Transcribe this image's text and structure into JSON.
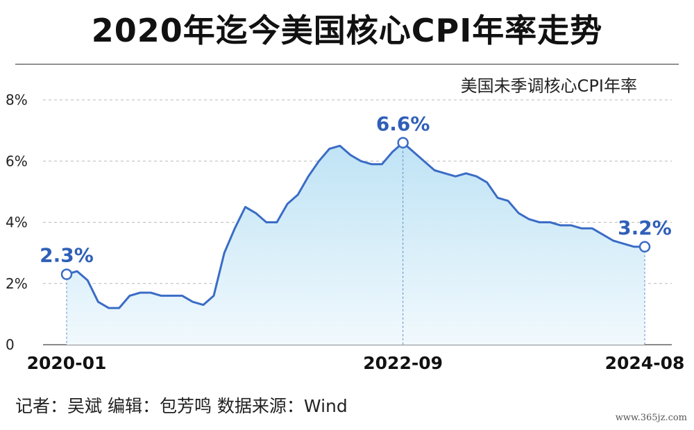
{
  "header": {
    "title": "2020年迄今美国核心CPI年率走势"
  },
  "chart_data": {
    "type": "area",
    "legend": "美国未季调核心CPI年率",
    "ylim": [
      0,
      8
    ],
    "yticks": [
      "0",
      "2%",
      "4%",
      "6%",
      "8%"
    ],
    "ytick_values": [
      0,
      2,
      4,
      6,
      8
    ],
    "grid": true,
    "xtick_labels": [
      "2020-01",
      "2022-09",
      "2024-08"
    ],
    "xtick_index": [
      0,
      32,
      55
    ],
    "values": [
      2.3,
      2.4,
      2.1,
      1.4,
      1.2,
      1.2,
      1.6,
      1.7,
      1.7,
      1.6,
      1.6,
      1.6,
      1.4,
      1.3,
      1.6,
      3.0,
      3.8,
      4.5,
      4.3,
      4.0,
      4.0,
      4.6,
      4.9,
      5.5,
      6.0,
      6.4,
      6.5,
      6.2,
      6.0,
      5.9,
      5.9,
      6.3,
      6.6,
      6.3,
      6.0,
      5.7,
      5.6,
      5.5,
      5.6,
      5.5,
      5.3,
      4.8,
      4.7,
      4.3,
      4.1,
      4.0,
      4.0,
      3.9,
      3.9,
      3.8,
      3.8,
      3.6,
      3.4,
      3.3,
      3.2,
      3.2
    ],
    "annotations": [
      {
        "index": 0,
        "label": "2.3%"
      },
      {
        "index": 32,
        "label": "6.6%"
      },
      {
        "index": 55,
        "label": "3.2%"
      }
    ],
    "colors": {
      "line": "#3a6cc6",
      "label": "#2f5fb8",
      "fill_top": "#bfe3f5",
      "fill_bottom": "#f1f9fd",
      "grid": "#b8b8b8"
    }
  },
  "footer": {
    "credit": "记者：吴斌  编辑：包芳鸣  数据来源：Wind"
  },
  "watermark": "www.365jz.com"
}
